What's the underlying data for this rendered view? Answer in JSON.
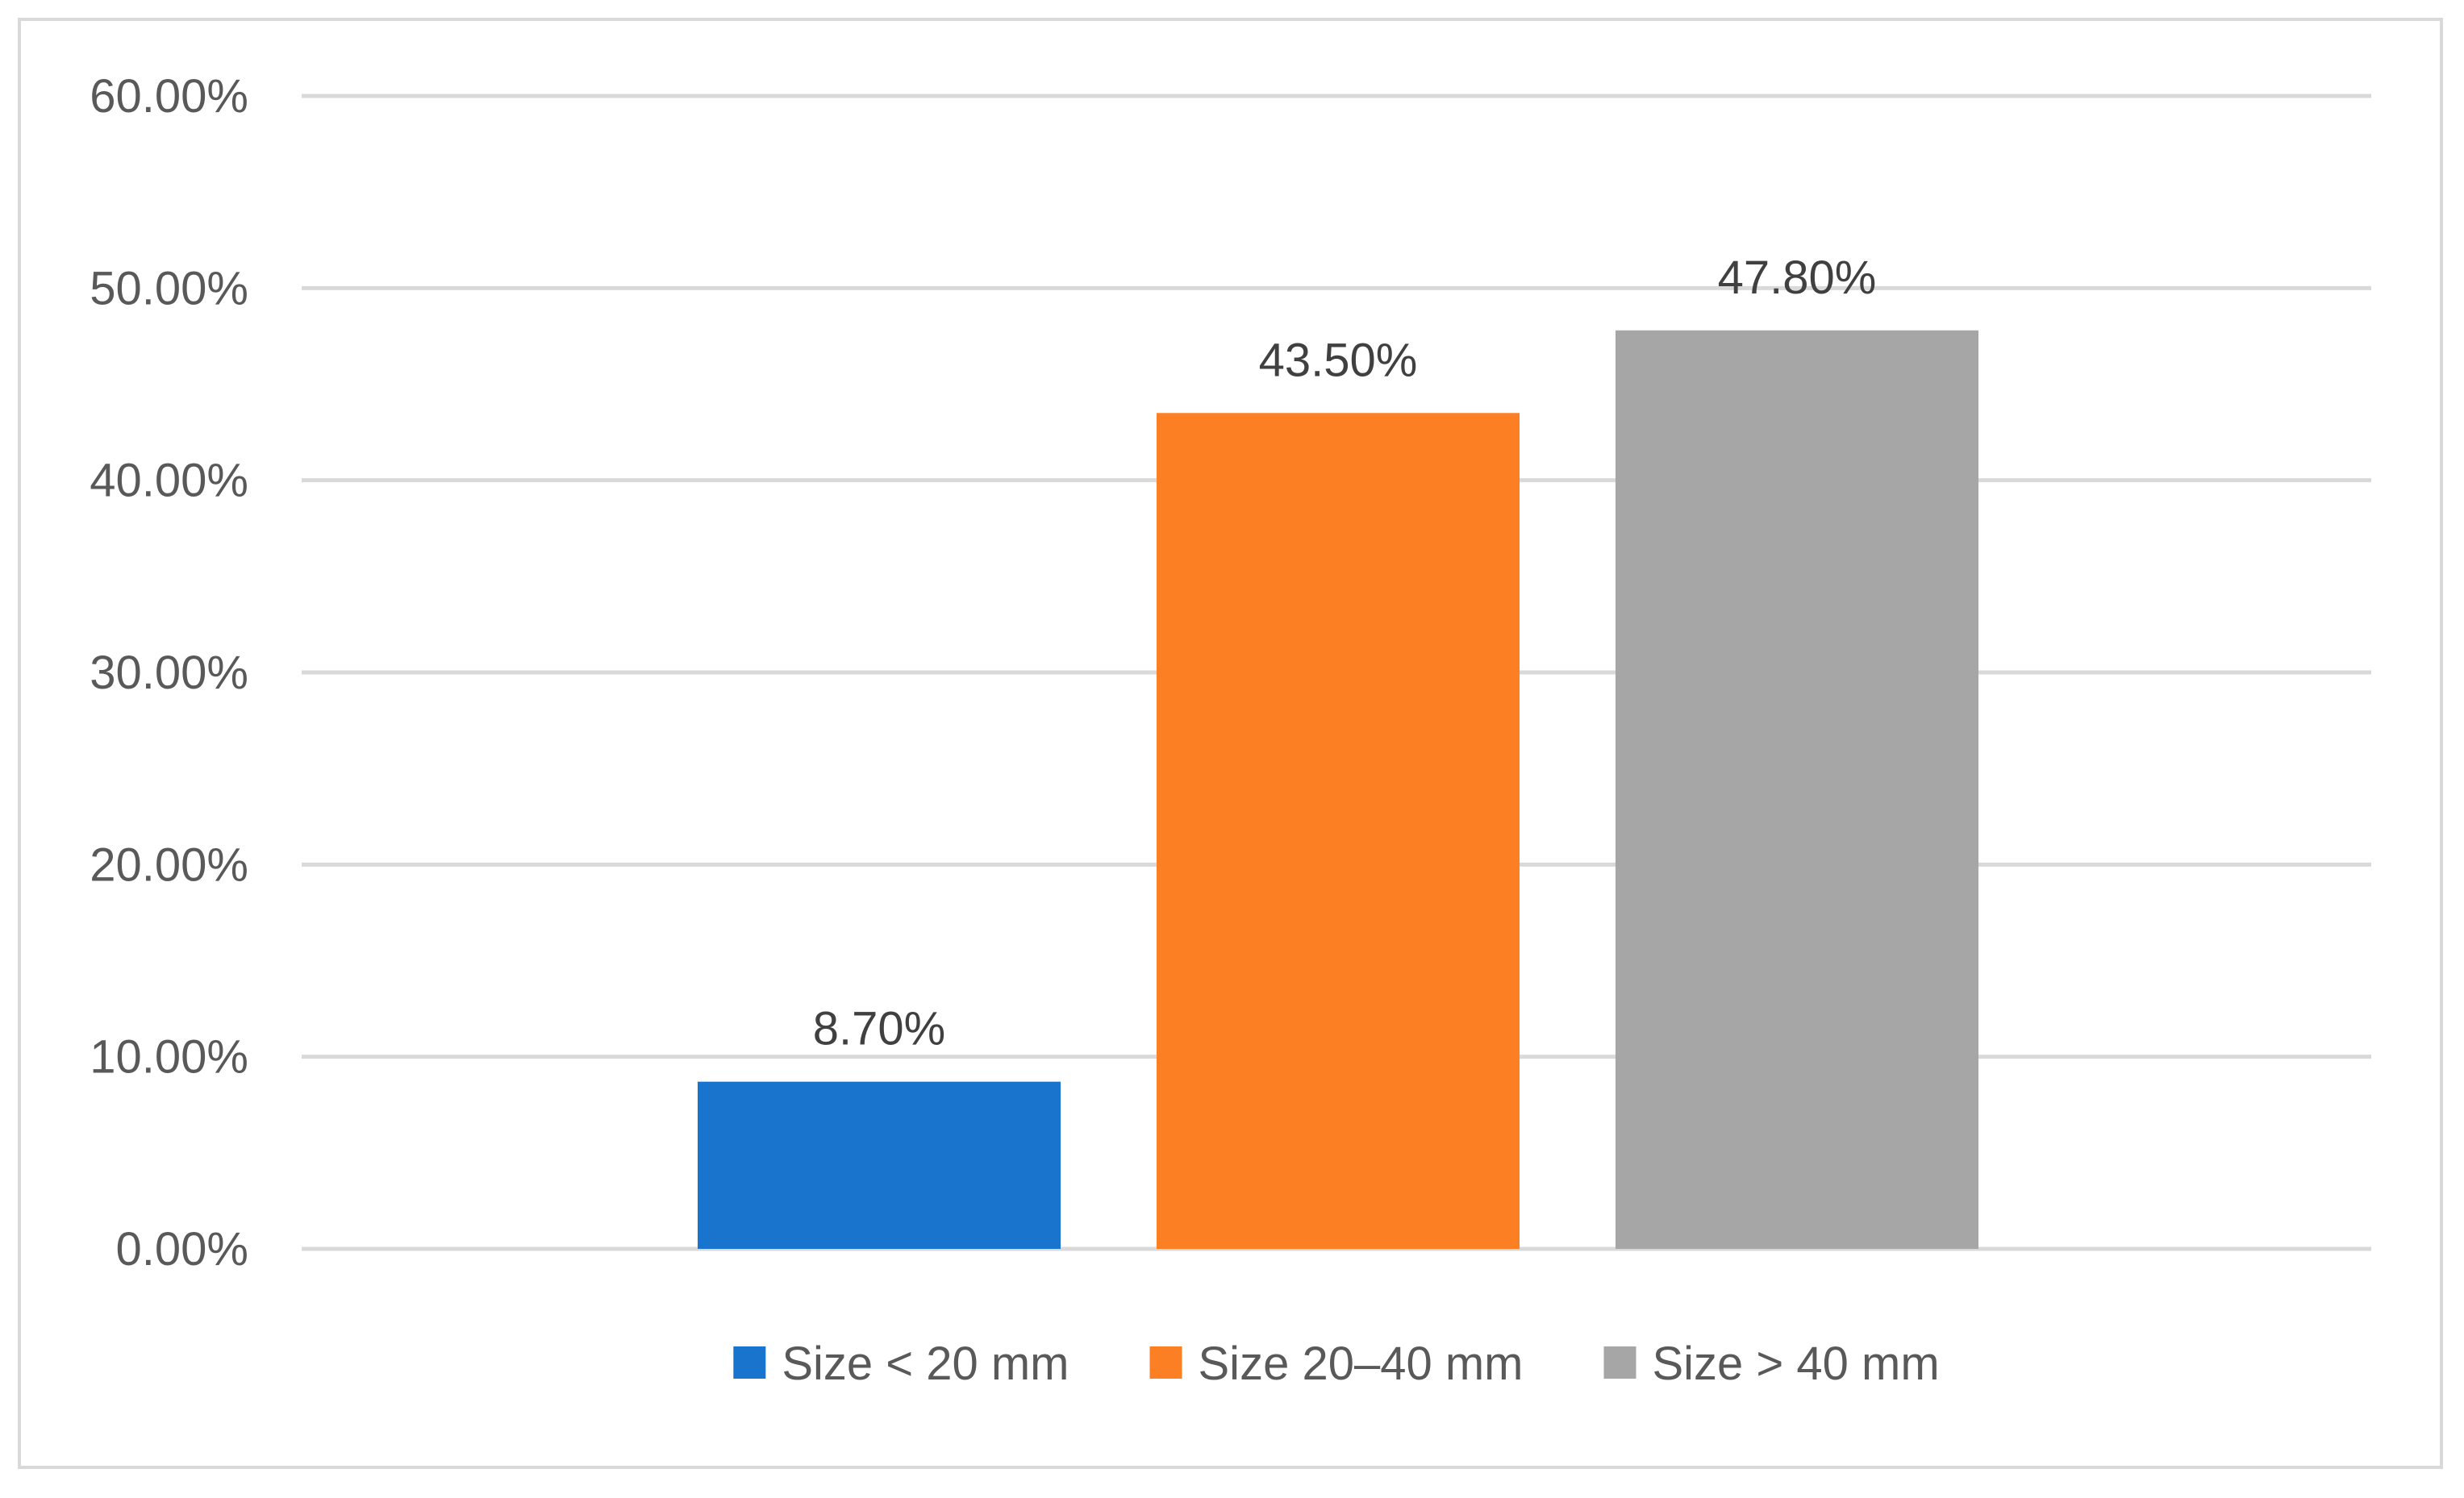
{
  "chart_data": {
    "type": "bar",
    "categories": [
      "Size < 20 mm",
      "Size 20–40 mm",
      "Size > 40 mm"
    ],
    "values": [
      8.7,
      43.5,
      47.8
    ],
    "value_labels": [
      "8.70%",
      "43.50%",
      "47.80%"
    ],
    "colors": [
      "#1874cd",
      "#fd7f23",
      "#a6a6a6"
    ],
    "ylim": [
      0,
      60
    ],
    "yticks": [
      0,
      10,
      20,
      30,
      40,
      50,
      60
    ],
    "ytick_labels": [
      "0.00%",
      "10.00%",
      "20.00%",
      "30.00%",
      "40.00%",
      "50.00%",
      "60.00%"
    ],
    "title": "",
    "xlabel": "",
    "ylabel": "",
    "grid": true,
    "legend_position": "bottom",
    "gridline_color": "#d9d9d9"
  }
}
